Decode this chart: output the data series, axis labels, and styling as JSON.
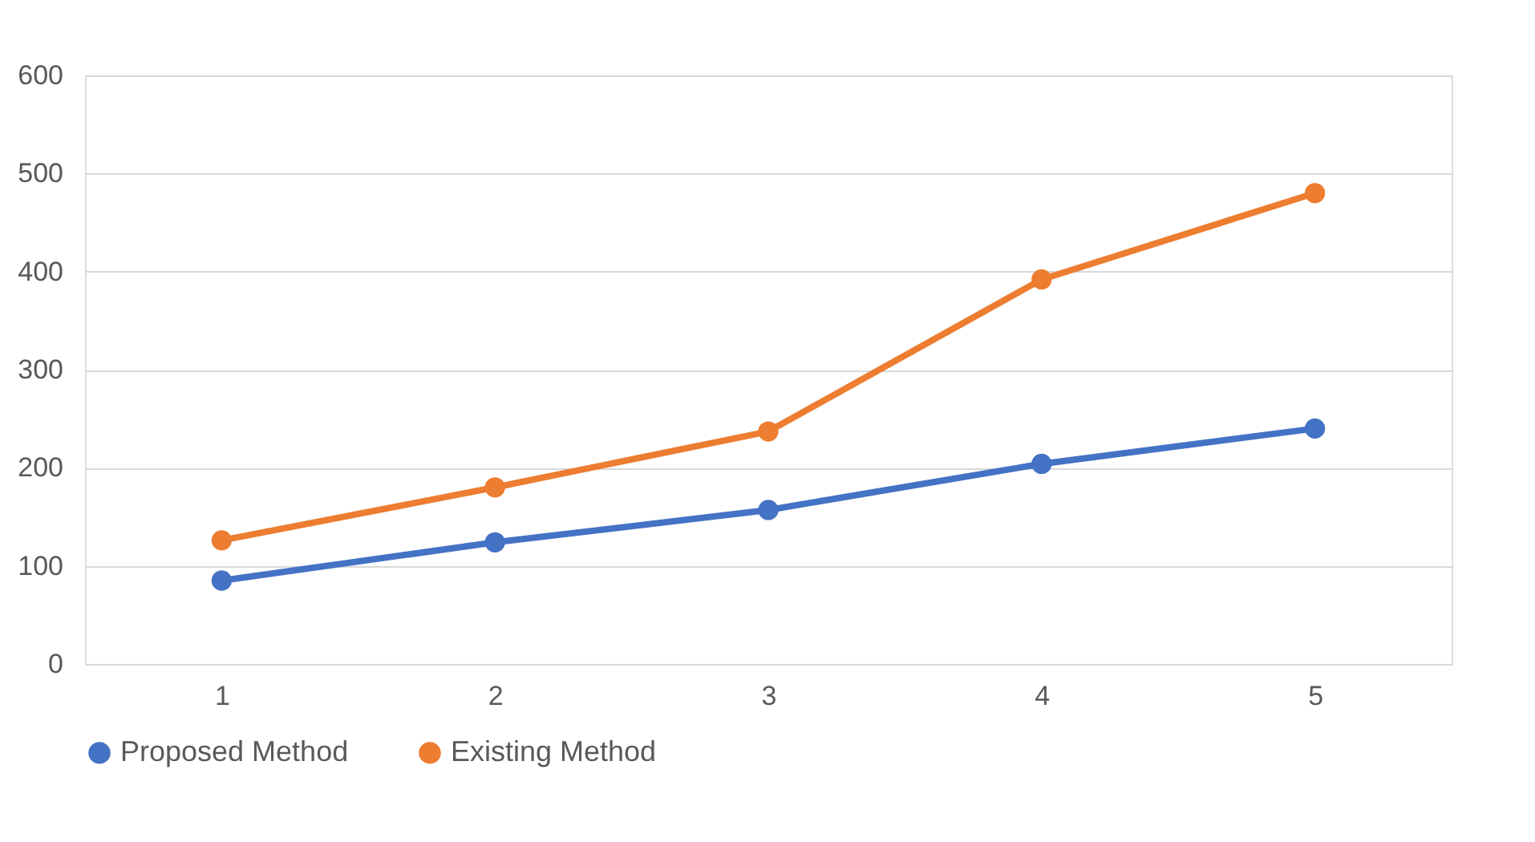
{
  "chart_data": {
    "type": "line",
    "categories": [
      "1",
      "2",
      "3",
      "4",
      "5"
    ],
    "series": [
      {
        "name": "Proposed Method",
        "color": "#4472c4",
        "values": [
          85,
          124,
          157,
          204,
          240
        ]
      },
      {
        "name": "Existing Method",
        "color": "#ed7d31",
        "values": [
          126,
          180,
          237,
          392,
          480
        ]
      }
    ],
    "ylim": [
      0,
      600
    ],
    "yticks": [
      0,
      100,
      200,
      300,
      400,
      500,
      600
    ],
    "grid": "y",
    "legend": "bottom",
    "marker": "circle",
    "line_style": "solid"
  }
}
